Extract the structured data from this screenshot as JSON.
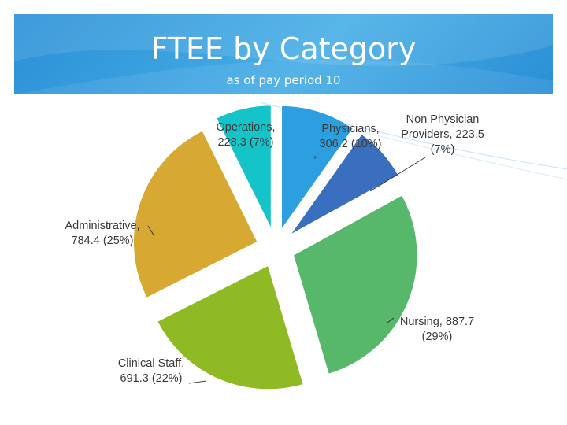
{
  "slide": {
    "title": "FTEE by Category",
    "subtitle": "as of pay period 10"
  },
  "chart_data": {
    "type": "pie",
    "title": "FTEE by Category",
    "subtitle": "as of pay period 10",
    "exploded": true,
    "slices": [
      {
        "name": "Physicians",
        "value": 306.2,
        "percent": "10%",
        "color": "#2b9fe0",
        "label_lines": [
          "Physicians,",
          "306.2 (10%)"
        ]
      },
      {
        "name": "Non Physician Providers",
        "value": 223.5,
        "percent": "7%",
        "color": "#3a6fbf",
        "label_lines": [
          "Non Physician",
          "Providers, 223.5",
          "(7%)"
        ]
      },
      {
        "name": "Nursing",
        "value": 887.7,
        "percent": "29%",
        "color": "#57b86b",
        "label_lines": [
          "Nursing, 887.7",
          "(29%)"
        ]
      },
      {
        "name": "Clinical Staff",
        "value": 691.3,
        "percent": "22%",
        "color": "#8fba24",
        "label_lines": [
          "Clinical Staff,",
          "691.3 (22%)"
        ]
      },
      {
        "name": "Administrative",
        "value": 784.4,
        "percent": "25%",
        "color": "#d7a832",
        "label_lines": [
          "Administrative,",
          "784.4 (25%)"
        ]
      },
      {
        "name": "Operations",
        "value": 228.3,
        "percent": "7%",
        "color": "#15c4c8",
        "label_lines": [
          "Operations,",
          "228.3 (7%)"
        ]
      }
    ]
  }
}
